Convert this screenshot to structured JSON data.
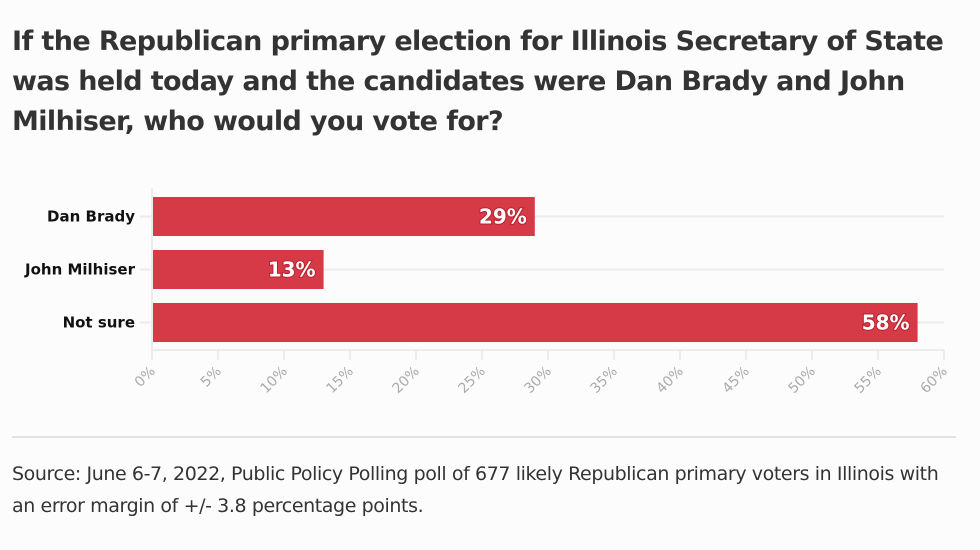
{
  "chart_data": {
    "type": "bar",
    "orientation": "horizontal",
    "title": "If the Republican primary election for Illinois Secretary of State was held today and the candidates were Dan Brady and John Milhiser, who would you vote for?",
    "categories": [
      "Dan Brady",
      "John Milhiser",
      "Not sure"
    ],
    "values": [
      29,
      13,
      58
    ],
    "value_labels": [
      "29%",
      "13%",
      "58%"
    ],
    "xlabel": "",
    "ylabel": "",
    "xlim": [
      0,
      60
    ],
    "x_ticks": [
      0,
      5,
      10,
      15,
      20,
      25,
      30,
      35,
      40,
      45,
      50,
      55,
      60
    ],
    "x_tick_labels": [
      "0%",
      "5%",
      "10%",
      "15%",
      "20%",
      "25%",
      "30%",
      "35%",
      "40%",
      "45%",
      "50%",
      "55%",
      "60%"
    ],
    "grid": true,
    "legend": "none",
    "bar_color": "#d63a47",
    "source": "Source: June 6-7, 2022, Public Policy Polling poll of 677 likely Republican primary voters in Illinois with an error margin of +/- 3.8 percentage points."
  },
  "colors": {
    "bar": "#d63a47",
    "background": "#fcfcfc",
    "grid": "#ececec",
    "tick_text": "#aaaaaa"
  }
}
